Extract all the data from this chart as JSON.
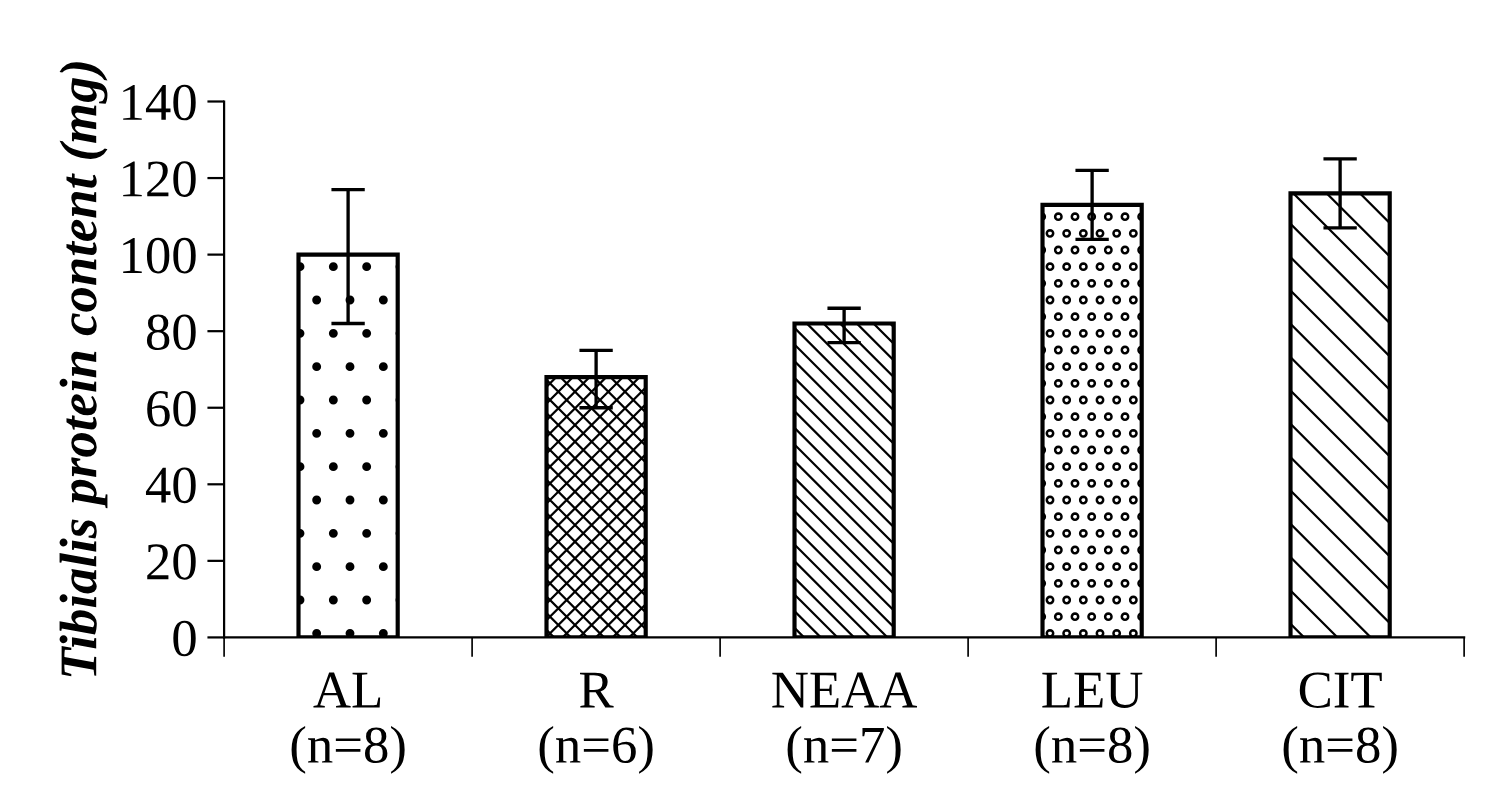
{
  "chart_data": {
    "type": "bar",
    "ylabel": "Tibialis protein content (mg)",
    "categories": [
      "AL\n(n=8)",
      "R\n(n=6)",
      "NEAA\n(n=7)",
      "LEU\n(n=8)",
      "CIT\n(n=8)"
    ],
    "values": [
      100,
      68,
      82,
      113,
      116
    ],
    "errors": [
      [
        82,
        117
      ],
      [
        60,
        75
      ],
      [
        77,
        86
      ],
      [
        104,
        122
      ],
      [
        107,
        125
      ]
    ],
    "ylim": [
      0,
      140
    ],
    "yticks": [
      0,
      20,
      40,
      60,
      80,
      100,
      120,
      140
    ],
    "grid": false,
    "legend": false
  }
}
